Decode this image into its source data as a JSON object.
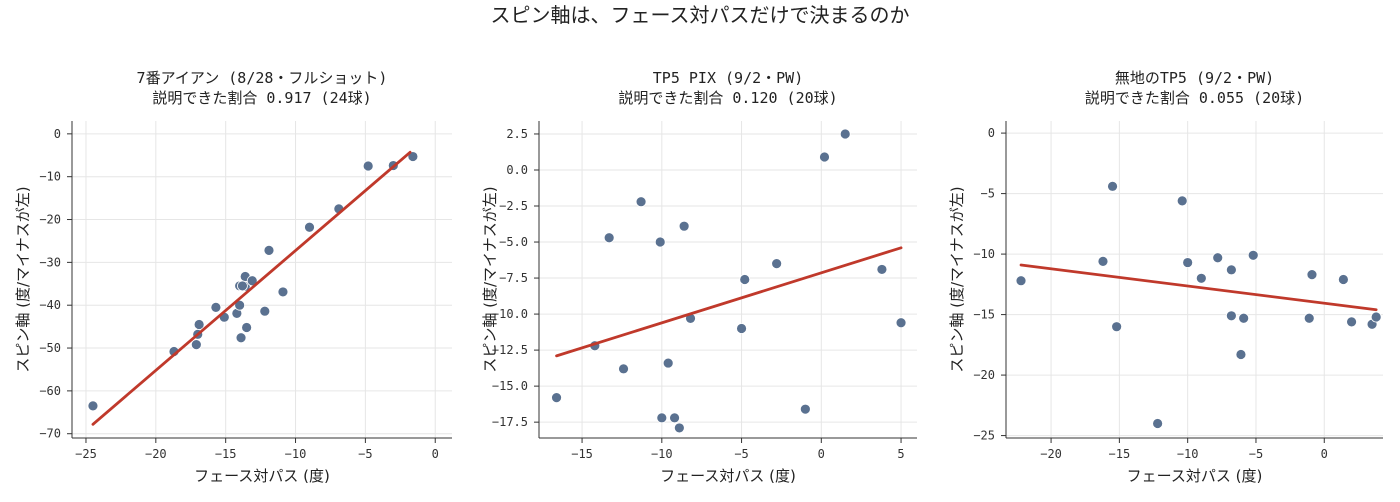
{
  "figure_title": "スピン軸は、フェース対パスだけで決まるのか",
  "colors": {
    "points": "#5a7190",
    "fit_line": "#c0392b",
    "grid": "#e6e6e6",
    "axis": "#333333"
  },
  "chart_data": [
    {
      "type": "scatter",
      "title": "7番アイアン (8/28・フルショット)",
      "subtitle": "説明できた割合 0.917 (24球)",
      "xlabel": "フェース対パス (度)",
      "ylabel": "スピン軸 (度/マイナスが左)",
      "xlim": [
        -26,
        1.2
      ],
      "ylim": [
        -71,
        3
      ],
      "xticks": [
        -25,
        -20,
        -15,
        -10,
        -5,
        0
      ],
      "yticks": [
        0,
        -10,
        -20,
        -30,
        -40,
        -50,
        -60,
        -70
      ],
      "grid": true,
      "points": [
        [
          -24.5,
          -63.5
        ],
        [
          -18.7,
          -50.8
        ],
        [
          -17.1,
          -49.2
        ],
        [
          -17.0,
          -46.8
        ],
        [
          -16.9,
          -44.5
        ],
        [
          -15.7,
          -40.5
        ],
        [
          -15.1,
          -42.8
        ],
        [
          -14.2,
          -41.9
        ],
        [
          -13.9,
          -47.6
        ],
        [
          -14.0,
          -40.0
        ],
        [
          -14.0,
          -35.5
        ],
        [
          -13.6,
          -35.6
        ],
        [
          -13.6,
          -33.3
        ],
        [
          -13.5,
          -45.2
        ],
        [
          -13.1,
          -34.3
        ],
        [
          -12.2,
          -41.4
        ],
        [
          -11.9,
          -27.2
        ],
        [
          -10.9,
          -36.9
        ],
        [
          -9.0,
          -21.8
        ],
        [
          -6.9,
          -17.5
        ],
        [
          -4.8,
          -7.5
        ],
        [
          -3.0,
          -7.4
        ],
        [
          -1.6,
          -5.3
        ],
        [
          -13.8,
          -35.5
        ]
      ],
      "fit": {
        "x": [
          -24.5,
          -1.8
        ],
        "y": [
          -67.8,
          -4.3
        ]
      }
    },
    {
      "type": "scatter",
      "title": "TP5 PIX (9/2・PW)",
      "subtitle": "説明できた割合 0.120 (20球)",
      "xlabel": "フェース対パス (度)",
      "ylabel": "スピン軸 (度/マイナスが左)",
      "xlim": [
        -17.7,
        6.0
      ],
      "ylim": [
        -18.6,
        3.4
      ],
      "xticks": [
        -15,
        -10,
        -5,
        0,
        5
      ],
      "yticks": [
        2.5,
        0.0,
        -2.5,
        -5.0,
        -7.5,
        -10.0,
        -12.5,
        -15.0,
        -17.5
      ],
      "ytick_labels": [
        "2.5",
        "0.0",
        "−2.5",
        "−5.0",
        "−7.5",
        "−10.0",
        "−12.5",
        "−15.0",
        "−17.5"
      ],
      "grid": true,
      "points": [
        [
          -16.6,
          -15.8
        ],
        [
          -14.2,
          -12.2
        ],
        [
          -13.3,
          -4.7
        ],
        [
          -12.4,
          -13.8
        ],
        [
          -11.3,
          -2.2
        ],
        [
          -10.1,
          -5.0
        ],
        [
          -10.0,
          -17.2
        ],
        [
          -9.6,
          -13.4
        ],
        [
          -9.2,
          -17.2
        ],
        [
          -8.9,
          -17.9
        ],
        [
          -8.6,
          -3.9
        ],
        [
          -8.2,
          -10.3
        ],
        [
          -5.0,
          -11.0
        ],
        [
          -4.8,
          -7.6
        ],
        [
          -2.8,
          -6.5
        ],
        [
          -1.0,
          -16.6
        ],
        [
          0.2,
          0.9
        ],
        [
          1.5,
          2.5
        ],
        [
          3.8,
          -6.9
        ],
        [
          5.0,
          -10.6
        ]
      ],
      "fit": {
        "x": [
          -16.6,
          5.0
        ],
        "y": [
          -12.9,
          -5.4
        ]
      }
    },
    {
      "type": "scatter",
      "title": "無地のTP5 (9/2・PW)",
      "subtitle": "説明できた割合 0.055 (20球)",
      "xlabel": "フェース対パス (度)",
      "ylabel": "スピン軸 (度/マイナスが左)",
      "xlim": [
        -23.3,
        4.3
      ],
      "ylim": [
        -25.2,
        1.0
      ],
      "xticks": [
        -20,
        -15,
        -10,
        -5,
        0
      ],
      "yticks": [
        0,
        -5,
        -10,
        -15,
        -20,
        -25
      ],
      "grid": true,
      "points": [
        [
          -22.2,
          -12.2
        ],
        [
          -16.2,
          -10.6
        ],
        [
          -15.5,
          -4.4
        ],
        [
          -15.2,
          -16.0
        ],
        [
          -12.2,
          -24.0
        ],
        [
          -10.4,
          -5.6
        ],
        [
          -10.0,
          -10.7
        ],
        [
          -9.0,
          -12.0
        ],
        [
          -7.8,
          -10.3
        ],
        [
          -6.8,
          -11.3
        ],
        [
          -6.8,
          -15.1
        ],
        [
          -5.9,
          -15.3
        ],
        [
          -6.1,
          -18.3
        ],
        [
          -5.2,
          -10.1
        ],
        [
          -1.1,
          -15.3
        ],
        [
          -0.9,
          -11.7
        ],
        [
          1.4,
          -12.1
        ],
        [
          2.0,
          -15.6
        ],
        [
          3.5,
          -15.8
        ],
        [
          3.8,
          -15.2
        ]
      ],
      "fit": {
        "x": [
          -22.2,
          3.8
        ],
        "y": [
          -10.9,
          -14.6
        ]
      }
    }
  ]
}
